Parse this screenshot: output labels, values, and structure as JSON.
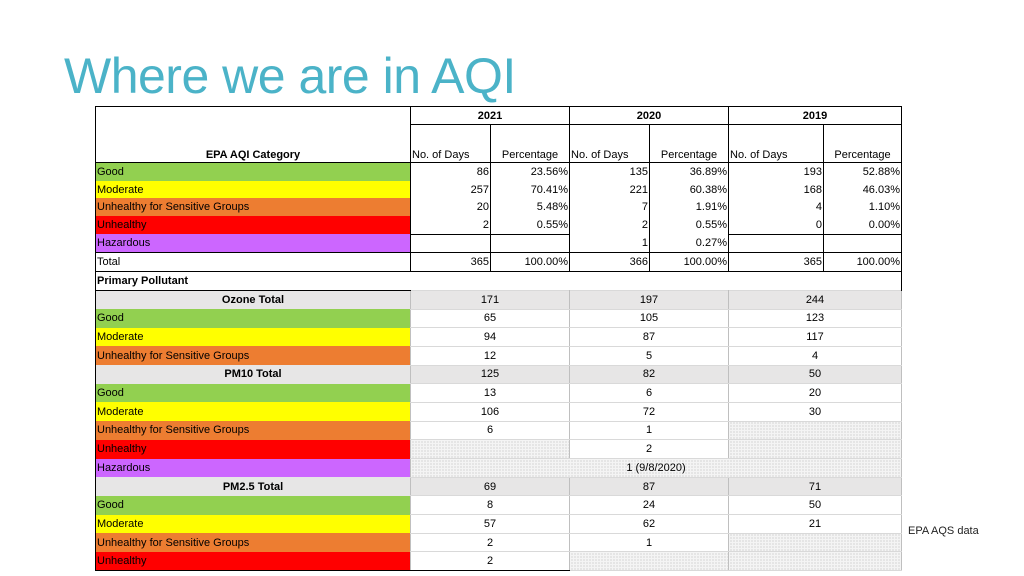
{
  "title": "Where we are in AQI",
  "source_note": "EPA AQS data",
  "header": {
    "years": [
      "2021",
      "2020",
      "2019"
    ],
    "category_label": "EPA AQI Category",
    "days_label": "No. of Days",
    "pct_label": "Percentage"
  },
  "summary_rows": [
    {
      "category": "Good",
      "d2021": "86",
      "p2021": "23.56%",
      "d2020": "135",
      "p2020": "36.89%",
      "d2019": "193",
      "p2019": "52.88%"
    },
    {
      "category": "Moderate",
      "d2021": "257",
      "p2021": "70.41%",
      "d2020": "221",
      "p2020": "60.38%",
      "d2019": "168",
      "p2019": "46.03%"
    },
    {
      "category": "Unhealthy for Sensitive Groups",
      "d2021": "20",
      "p2021": "5.48%",
      "d2020": "7",
      "p2020": "1.91%",
      "d2019": "4",
      "p2019": "1.10%"
    },
    {
      "category": "Unhealthy",
      "d2021": "2",
      "p2021": "0.55%",
      "d2020": "2",
      "p2020": "0.55%",
      "d2019": "0",
      "p2019": "0.00%"
    },
    {
      "category": "Hazardous",
      "d2021": "",
      "p2021": "",
      "d2020": "1",
      "p2020": "0.27%",
      "d2019": "",
      "p2019": ""
    },
    {
      "category": "Total",
      "d2021": "365",
      "p2021": "100.00%",
      "d2020": "366",
      "p2020": "100.00%",
      "d2019": "365",
      "p2019": "100.00%"
    }
  ],
  "primary_pollutant_label": "Primary Pollutant",
  "ozone": {
    "total_label": "Ozone Total",
    "t2021": "171",
    "t2020": "197",
    "t2019": "244",
    "rows": [
      {
        "category": "Good",
        "v2021": "65",
        "v2020": "105",
        "v2019": "123"
      },
      {
        "category": "Moderate",
        "v2021": "94",
        "v2020": "87",
        "v2019": "117"
      },
      {
        "category": "Unhealthy for Sensitive Groups",
        "v2021": "12",
        "v2020": "5",
        "v2019": "4"
      }
    ]
  },
  "pm10": {
    "total_label": "PM10 Total",
    "t2021": "125",
    "t2020": "82",
    "t2019": "50",
    "rows": [
      {
        "category": "Good",
        "v2021": "13",
        "v2020": "6",
        "v2019": "20"
      },
      {
        "category": "Moderate",
        "v2021": "106",
        "v2020": "72",
        "v2019": "30"
      },
      {
        "category": "Unhealthy for Sensitive Groups",
        "v2021": "6",
        "v2020": "1",
        "v2019": ""
      },
      {
        "category": "Unhealthy",
        "v2021": "",
        "v2020": "2",
        "v2019": ""
      },
      {
        "category": "Hazardous",
        "merged": "1 (9/8/2020)"
      }
    ]
  },
  "pm25": {
    "total_label": "PM2.5 Total",
    "t2021": "69",
    "t2020": "87",
    "t2019": "71",
    "rows": [
      {
        "category": "Good",
        "v2021": "8",
        "v2020": "24",
        "v2019": "50"
      },
      {
        "category": "Moderate",
        "v2021": "57",
        "v2020": "62",
        "v2019": "21"
      },
      {
        "category": "Unhealthy for Sensitive Groups",
        "v2021": "2",
        "v2020": "1",
        "v2019": ""
      },
      {
        "category": "Unhealthy",
        "v2021": "2",
        "v2020": "",
        "v2019": ""
      }
    ]
  },
  "colors": {
    "good": "#92d050",
    "moderate": "#ffff00",
    "usg": "#ed7d31",
    "unhealthy": "#ff0000",
    "hazardous": "#cc66ff",
    "title": "#4bb3c8",
    "section": "#e7e6e6"
  }
}
